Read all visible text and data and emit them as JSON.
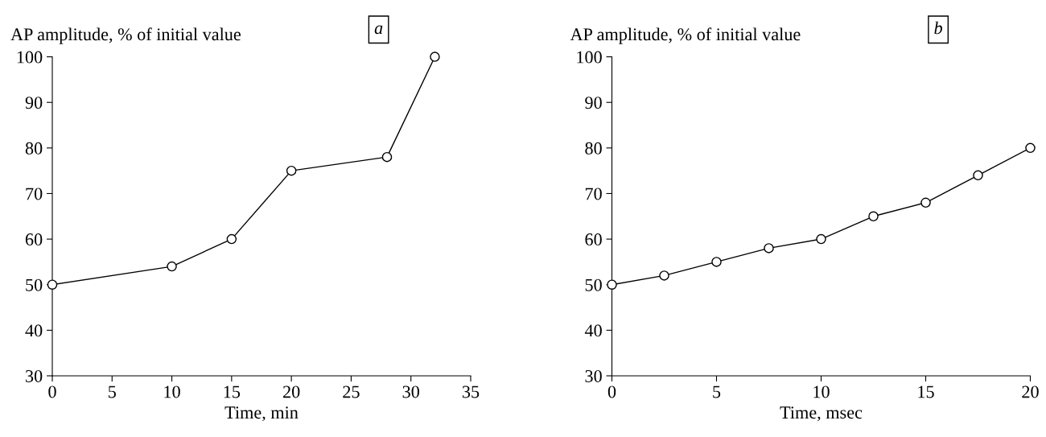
{
  "chart_data": [
    {
      "type": "line",
      "ylabel": "AP amplitude, % of initial value",
      "xlabel": "Time, min",
      "annotations": [
        "a"
      ],
      "x": [
        0,
        10,
        15,
        20,
        28,
        32
      ],
      "values": [
        50,
        54,
        60,
        75,
        78,
        100
      ],
      "color": "#000000",
      "marker": "circle",
      "line_style": "solid",
      "xlim": [
        0,
        35
      ],
      "xticks": [
        0,
        5,
        10,
        15,
        20,
        25,
        30,
        35
      ],
      "ylim": [
        30,
        100
      ],
      "yticks": [
        30,
        40,
        50,
        60,
        70,
        80,
        90,
        100
      ],
      "grid": false,
      "legend": false
    },
    {
      "type": "line",
      "ylabel": "AP amplitude, % of initial value",
      "xlabel": "Time, msec",
      "annotations": [
        "b"
      ],
      "x": [
        0,
        2.5,
        5,
        7.5,
        10,
        12.5,
        15,
        17.5,
        20
      ],
      "values": [
        50,
        52,
        55,
        58,
        60,
        65,
        68,
        74,
        80
      ],
      "color": "#000000",
      "marker": "circle",
      "line_style": "solid",
      "xlim": [
        0,
        20
      ],
      "xticks": [
        0,
        5,
        10,
        15,
        20
      ],
      "ylim": [
        30,
        100
      ],
      "yticks": [
        30,
        40,
        50,
        60,
        70,
        80,
        90,
        100
      ],
      "grid": false,
      "legend": false
    }
  ]
}
